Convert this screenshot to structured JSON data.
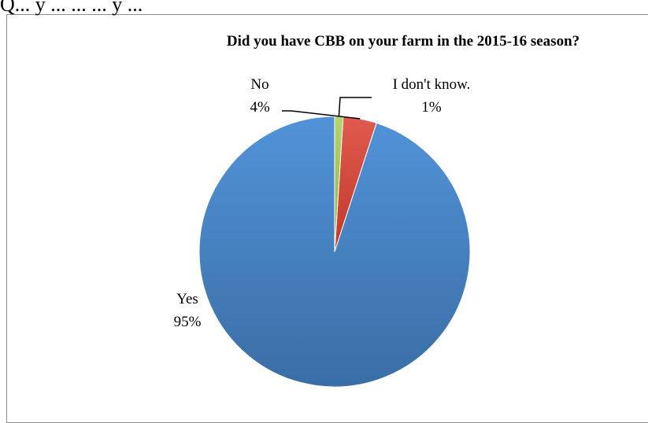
{
  "page": {
    "cut_off_text": "Q... y ... ... ... y ..."
  },
  "chart_data": {
    "type": "pie",
    "title": "Did you have CBB on your farm in the 2015-16 season?",
    "start_angle_deg": 0,
    "direction": "counterclockwise",
    "slices": [
      {
        "label": "Yes",
        "value": 95,
        "display": "95%",
        "color": "#4a7ebb"
      },
      {
        "label": "No",
        "value": 4,
        "display": "4%",
        "color": "#d9534a"
      },
      {
        "label": "I don't know.",
        "value": 1,
        "display": "1%",
        "color": "#a9c859"
      }
    ],
    "legend": "none",
    "data_labels": "outside-with-leader-lines"
  }
}
